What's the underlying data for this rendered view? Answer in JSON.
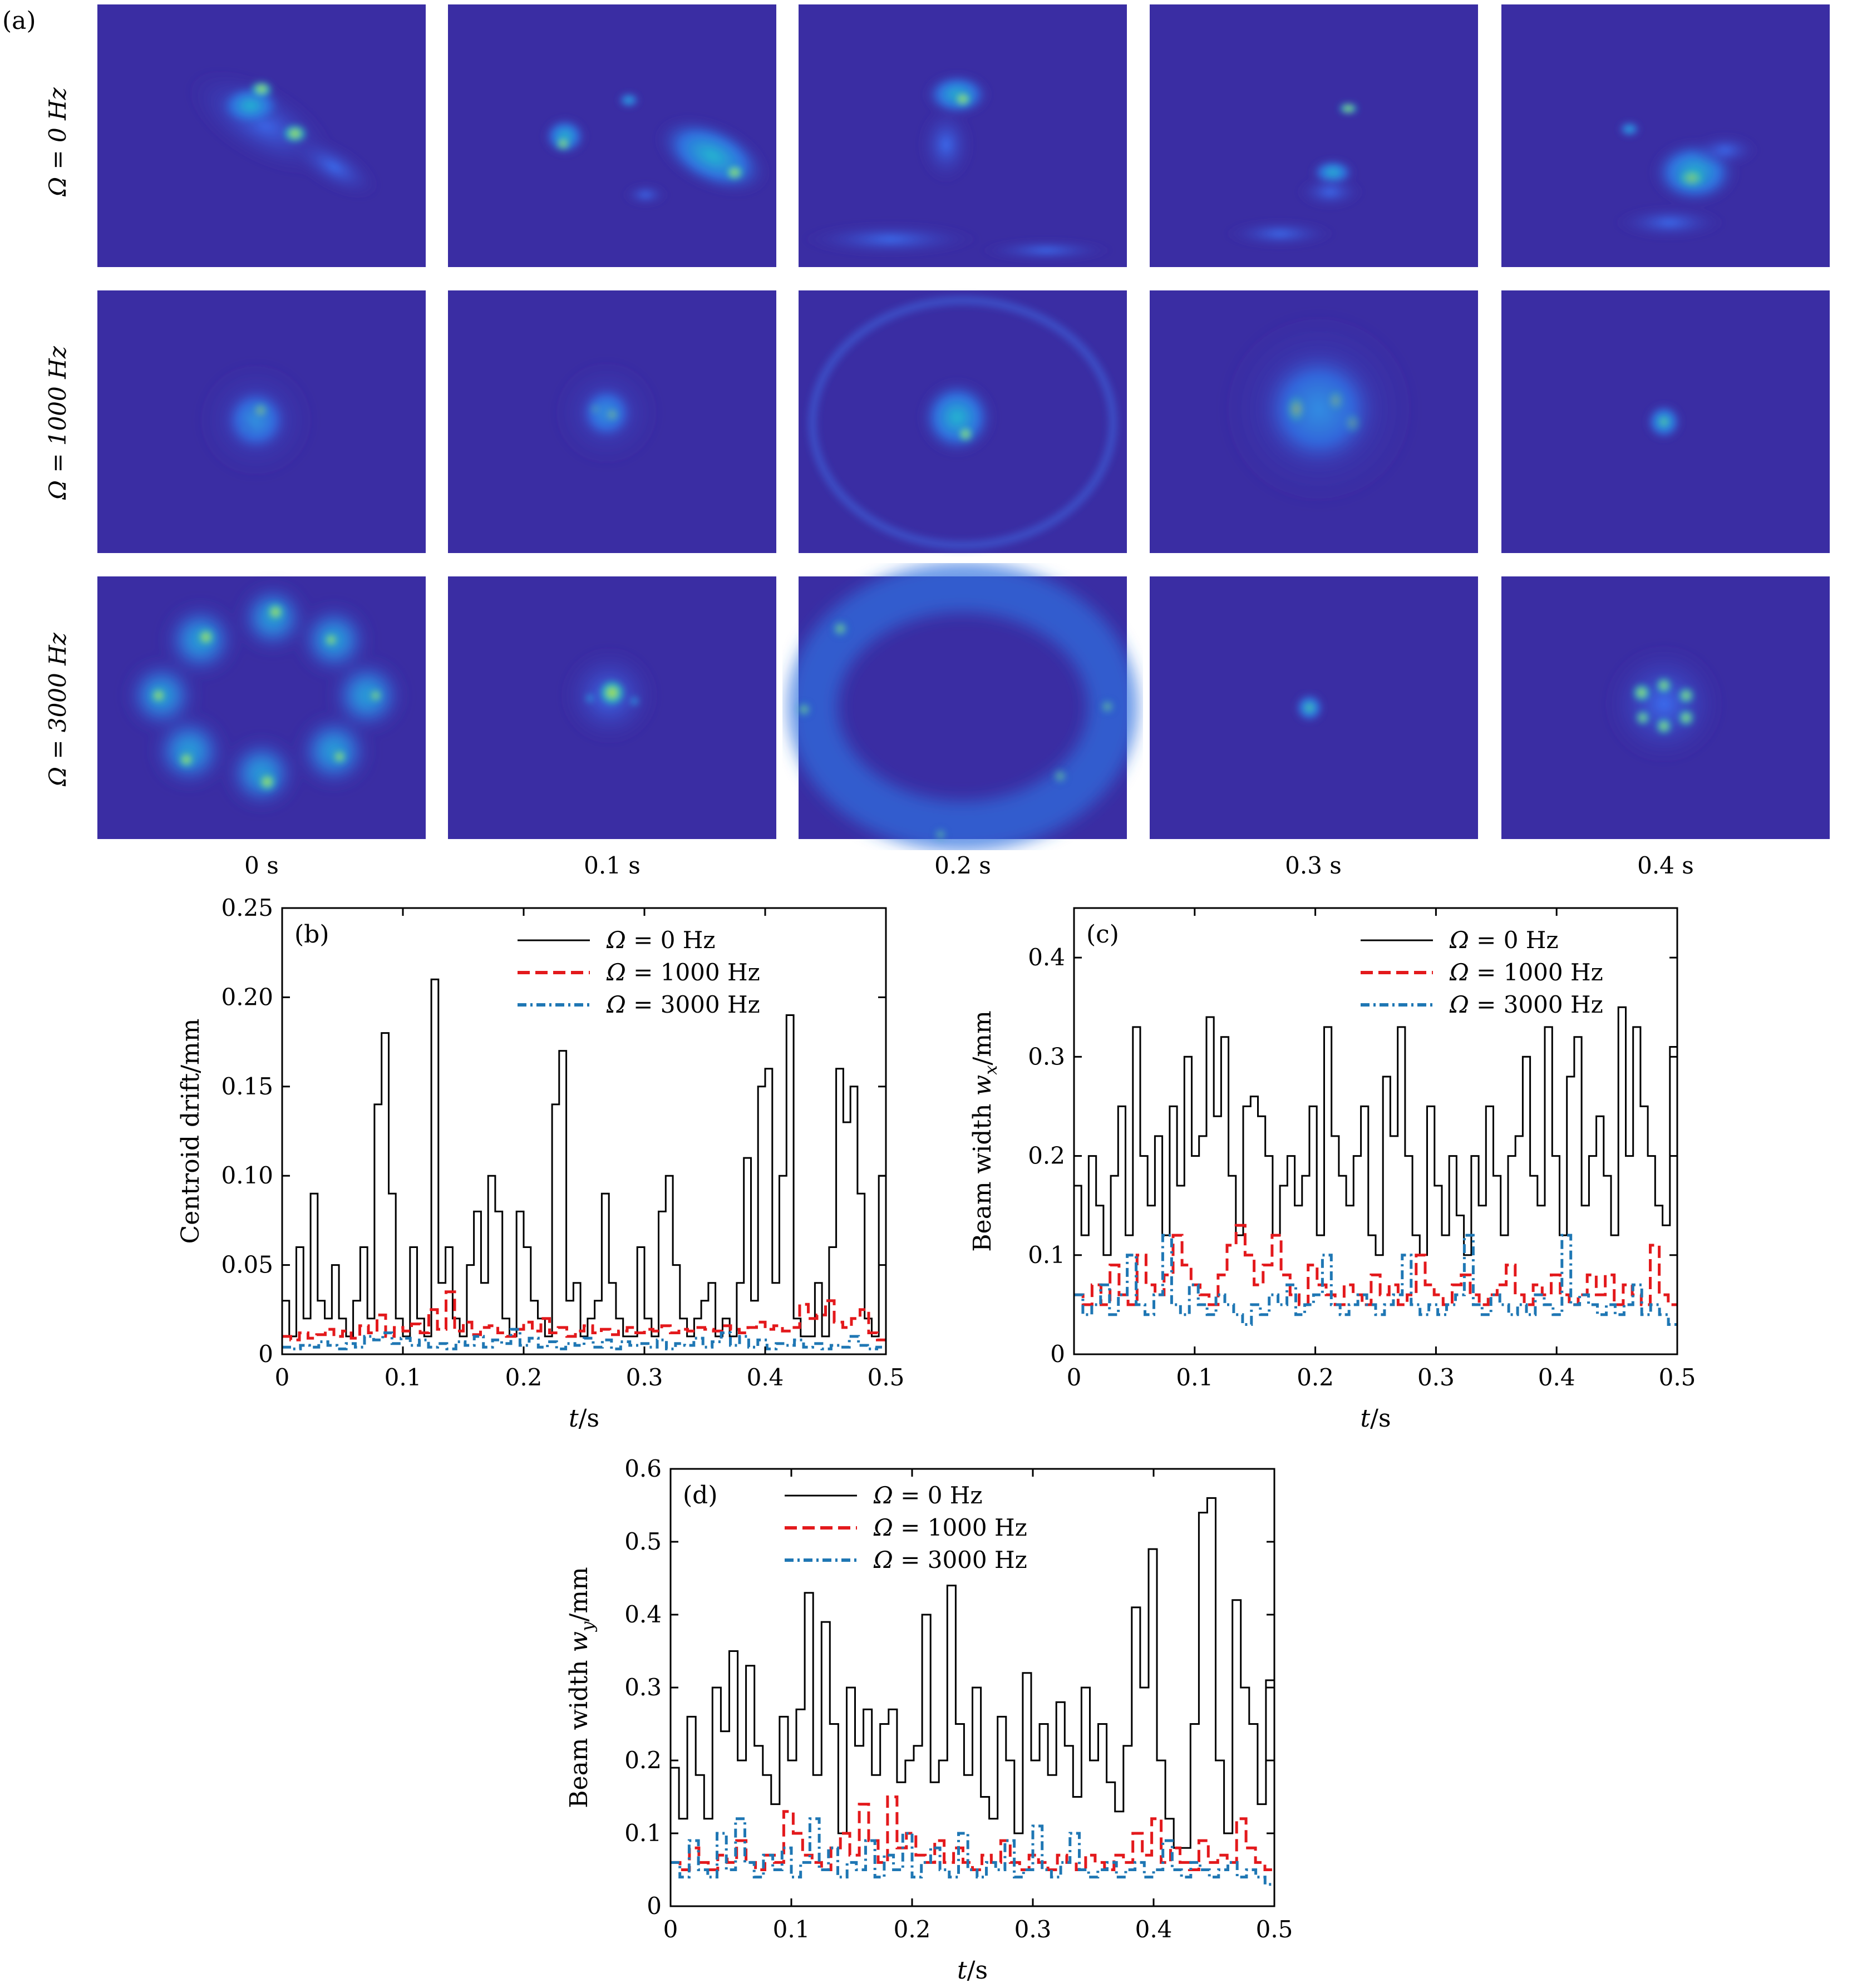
{
  "panel_a": {
    "label": "(a)",
    "row_labels": [
      "Ω = 0 Hz",
      "Ω = 1000 Hz",
      "Ω = 3000 Hz"
    ],
    "col_labels": [
      "0 s",
      "0.1 s",
      "0.2 s",
      "0.3 s",
      "0.4 s"
    ],
    "colors": {
      "background": "#3a2da3",
      "low": "#2f5fd6",
      "mid": "#19b2cf",
      "high": "#f2e81e"
    }
  },
  "chart_data": [
    {
      "panel": "(b)",
      "type": "line",
      "step": true,
      "ylabel": "Centroid drift/mm",
      "xlabel": "t/s",
      "xlim": [
        0,
        0.5
      ],
      "ylim": [
        0,
        0.25
      ],
      "xticks": [
        "0",
        "0.1",
        "0.2",
        "0.3",
        "0.4",
        "0.5"
      ],
      "yticks": [
        "0",
        "0.05",
        "0.10",
        "0.15",
        "0.20",
        "0.25"
      ],
      "legend": "top-center",
      "series": [
        {
          "name": "Ω = 0 Hz",
          "color": "#000000",
          "style": "solid",
          "values": [
            0.03,
            0.01,
            0.06,
            0.02,
            0.09,
            0.03,
            0.02,
            0.05,
            0.02,
            0.01,
            0.03,
            0.06,
            0.02,
            0.14,
            0.18,
            0.09,
            0.02,
            0.01,
            0.06,
            0.02,
            0.01,
            0.21,
            0.04,
            0.06,
            0.02,
            0.01,
            0.05,
            0.08,
            0.04,
            0.1,
            0.08,
            0.02,
            0.01,
            0.08,
            0.06,
            0.03,
            0.02,
            0.01,
            0.14,
            0.17,
            0.03,
            0.04,
            0.01,
            0.02,
            0.03,
            0.09,
            0.04,
            0.02,
            0.01,
            0.01,
            0.06,
            0.02,
            0.01,
            0.08,
            0.1,
            0.05,
            0.02,
            0.01,
            0.02,
            0.03,
            0.04,
            0.01,
            0.02,
            0.01,
            0.04,
            0.11,
            0.03,
            0.15,
            0.16,
            0.04,
            0.1,
            0.19,
            0.02,
            0.01,
            0.01,
            0.04,
            0.01,
            0.06,
            0.16,
            0.13,
            0.15,
            0.09,
            0.02,
            0.01,
            0.1
          ]
        },
        {
          "name": "Ω = 1000 Hz",
          "color": "#e3191c",
          "style": "dashed",
          "values": [
            0.01,
            0.008,
            0.012,
            0.009,
            0.011,
            0.014,
            0.01,
            0.013,
            0.009,
            0.016,
            0.012,
            0.022,
            0.01,
            0.015,
            0.013,
            0.017,
            0.012,
            0.025,
            0.014,
            0.035,
            0.013,
            0.018,
            0.011,
            0.015,
            0.016,
            0.012,
            0.01,
            0.014,
            0.018,
            0.013,
            0.02,
            0.012,
            0.015,
            0.01,
            0.013,
            0.016,
            0.012,
            0.014,
            0.011,
            0.013,
            0.015,
            0.012,
            0.014,
            0.013,
            0.016,
            0.012,
            0.014,
            0.013,
            0.015,
            0.014,
            0.013,
            0.016,
            0.014,
            0.012,
            0.015,
            0.018,
            0.014,
            0.016,
            0.013,
            0.015,
            0.028,
            0.02,
            0.022,
            0.03,
            0.018,
            0.015,
            0.02,
            0.025,
            0.012,
            0.008
          ]
        },
        {
          "name": "Ω = 3000 Hz",
          "color": "#1f77b4",
          "style": "dashdot",
          "values": [
            0.004,
            0.003,
            0.005,
            0.004,
            0.007,
            0.005,
            0.003,
            0.006,
            0.004,
            0.01,
            0.008,
            0.012,
            0.006,
            0.009,
            0.005,
            0.008,
            0.004,
            0.006,
            0.003,
            0.007,
            0.005,
            0.01,
            0.004,
            0.008,
            0.006,
            0.014,
            0.005,
            0.009,
            0.004,
            0.007,
            0.003,
            0.006,
            0.005,
            0.009,
            0.004,
            0.008,
            0.003,
            0.007,
            0.005,
            0.006,
            0.004,
            0.008,
            0.003,
            0.006,
            0.005,
            0.009,
            0.004,
            0.007,
            0.012,
            0.005,
            0.01,
            0.004,
            0.008,
            0.003,
            0.006,
            0.005,
            0.008,
            0.004,
            0.006,
            0.003,
            0.005,
            0.004,
            0.01,
            0.005,
            0.003,
            0.004
          ]
        }
      ]
    },
    {
      "panel": "(c)",
      "type": "line",
      "step": true,
      "ylabel": "Beam width w_x/mm",
      "xlabel": "t/s",
      "xlim": [
        0,
        0.5
      ],
      "ylim": [
        0,
        0.45
      ],
      "xticks": [
        "0",
        "0.1",
        "0.2",
        "0.3",
        "0.4",
        "0.5"
      ],
      "yticks": [
        "0",
        "0.1",
        "0.2",
        "0.3",
        "0.4"
      ],
      "legend": "top-center",
      "series": [
        {
          "name": "Ω = 0 Hz",
          "color": "#000000",
          "style": "solid",
          "values": [
            0.17,
            0.12,
            0.2,
            0.15,
            0.1,
            0.18,
            0.25,
            0.12,
            0.33,
            0.2,
            0.15,
            0.22,
            0.12,
            0.25,
            0.17,
            0.3,
            0.2,
            0.22,
            0.34,
            0.24,
            0.32,
            0.18,
            0.12,
            0.25,
            0.26,
            0.24,
            0.2,
            0.12,
            0.17,
            0.2,
            0.15,
            0.18,
            0.25,
            0.12,
            0.33,
            0.22,
            0.18,
            0.15,
            0.2,
            0.25,
            0.12,
            0.1,
            0.28,
            0.22,
            0.33,
            0.2,
            0.12,
            0.1,
            0.25,
            0.17,
            0.12,
            0.2,
            0.14,
            0.1,
            0.2,
            0.15,
            0.25,
            0.18,
            0.12,
            0.2,
            0.22,
            0.3,
            0.18,
            0.15,
            0.33,
            0.2,
            0.12,
            0.28,
            0.32,
            0.15,
            0.2,
            0.24,
            0.18,
            0.12,
            0.35,
            0.2,
            0.33,
            0.25,
            0.2,
            0.15,
            0.13,
            0.31
          ]
        },
        {
          "name": "Ω = 1000 Hz",
          "color": "#e3191c",
          "style": "dashed",
          "values": [
            0.06,
            0.05,
            0.07,
            0.05,
            0.09,
            0.06,
            0.05,
            0.1,
            0.07,
            0.06,
            0.08,
            0.12,
            0.09,
            0.07,
            0.06,
            0.05,
            0.08,
            0.11,
            0.13,
            0.1,
            0.07,
            0.09,
            0.12,
            0.08,
            0.06,
            0.05,
            0.09,
            0.07,
            0.06,
            0.05,
            0.07,
            0.06,
            0.05,
            0.08,
            0.06,
            0.07,
            0.05,
            0.06,
            0.1,
            0.07,
            0.06,
            0.05,
            0.07,
            0.08,
            0.06,
            0.05,
            0.06,
            0.07,
            0.09,
            0.06,
            0.05,
            0.07,
            0.06,
            0.08,
            0.06,
            0.05,
            0.06,
            0.08,
            0.06,
            0.08,
            0.05,
            0.07,
            0.06,
            0.05,
            0.11,
            0.06,
            0.05
          ]
        },
        {
          "name": "Ω = 3000 Hz",
          "color": "#1f77b4",
          "style": "dashdot",
          "values": [
            0.06,
            0.04,
            0.05,
            0.07,
            0.04,
            0.06,
            0.1,
            0.05,
            0.04,
            0.06,
            0.12,
            0.05,
            0.04,
            0.07,
            0.05,
            0.04,
            0.06,
            0.05,
            0.04,
            0.03,
            0.05,
            0.04,
            0.06,
            0.05,
            0.07,
            0.04,
            0.05,
            0.06,
            0.1,
            0.05,
            0.04,
            0.05,
            0.06,
            0.05,
            0.04,
            0.05,
            0.06,
            0.1,
            0.05,
            0.04,
            0.05,
            0.04,
            0.05,
            0.06,
            0.12,
            0.05,
            0.04,
            0.06,
            0.05,
            0.04,
            0.05,
            0.04,
            0.06,
            0.05,
            0.04,
            0.12,
            0.05,
            0.06,
            0.05,
            0.04,
            0.05,
            0.04,
            0.05,
            0.07,
            0.04,
            0.05,
            0.04,
            0.03
          ]
        }
      ]
    },
    {
      "panel": "(d)",
      "type": "line",
      "step": true,
      "ylabel": "Beam width w_y/mm",
      "xlabel": "t/s",
      "xlim": [
        0,
        0.5
      ],
      "ylim": [
        0,
        0.6
      ],
      "xticks": [
        "0",
        "0.1",
        "0.2",
        "0.3",
        "0.4",
        "0.5"
      ],
      "yticks": [
        "0",
        "0.1",
        "0.2",
        "0.3",
        "0.4",
        "0.5",
        "0.6"
      ],
      "legend": "top-center",
      "series": [
        {
          "name": "Ω = 0 Hz",
          "color": "#000000",
          "style": "solid",
          "values": [
            0.19,
            0.12,
            0.26,
            0.18,
            0.12,
            0.3,
            0.24,
            0.35,
            0.2,
            0.33,
            0.22,
            0.18,
            0.14,
            0.26,
            0.2,
            0.27,
            0.43,
            0.18,
            0.39,
            0.25,
            0.1,
            0.3,
            0.22,
            0.27,
            0.18,
            0.25,
            0.27,
            0.17,
            0.2,
            0.22,
            0.4,
            0.17,
            0.2,
            0.44,
            0.25,
            0.18,
            0.3,
            0.15,
            0.12,
            0.26,
            0.2,
            0.1,
            0.32,
            0.2,
            0.25,
            0.18,
            0.28,
            0.22,
            0.15,
            0.3,
            0.2,
            0.25,
            0.17,
            0.13,
            0.22,
            0.41,
            0.3,
            0.49,
            0.2,
            0.12,
            0.08,
            0.08,
            0.25,
            0.54,
            0.56,
            0.2,
            0.1,
            0.42,
            0.3,
            0.25,
            0.14,
            0.31
          ]
        },
        {
          "name": "Ω = 1000 Hz",
          "color": "#e3191c",
          "style": "dashed",
          "values": [
            0.06,
            0.05,
            0.08,
            0.06,
            0.05,
            0.07,
            0.06,
            0.09,
            0.06,
            0.05,
            0.07,
            0.06,
            0.13,
            0.1,
            0.07,
            0.06,
            0.05,
            0.08,
            0.1,
            0.07,
            0.14,
            0.09,
            0.06,
            0.15,
            0.08,
            0.1,
            0.07,
            0.06,
            0.09,
            0.06,
            0.08,
            0.06,
            0.05,
            0.07,
            0.06,
            0.09,
            0.06,
            0.05,
            0.07,
            0.06,
            0.05,
            0.07,
            0.06,
            0.05,
            0.07,
            0.06,
            0.05,
            0.07,
            0.06,
            0.1,
            0.07,
            0.12,
            0.06,
            0.08,
            0.06,
            0.05,
            0.09,
            0.06,
            0.07,
            0.06,
            0.12,
            0.08,
            0.06,
            0.05
          ]
        },
        {
          "name": "Ω = 3000 Hz",
          "color": "#1f77b4",
          "style": "dashdot",
          "values": [
            0.06,
            0.04,
            0.09,
            0.05,
            0.04,
            0.1,
            0.05,
            0.12,
            0.06,
            0.04,
            0.07,
            0.05,
            0.08,
            0.04,
            0.06,
            0.12,
            0.05,
            0.08,
            0.04,
            0.06,
            0.05,
            0.09,
            0.04,
            0.07,
            0.05,
            0.1,
            0.04,
            0.06,
            0.08,
            0.05,
            0.04,
            0.1,
            0.05,
            0.04,
            0.06,
            0.05,
            0.09,
            0.04,
            0.05,
            0.11,
            0.05,
            0.04,
            0.06,
            0.1,
            0.05,
            0.04,
            0.05,
            0.06,
            0.04,
            0.05,
            0.06,
            0.04,
            0.05,
            0.09,
            0.05,
            0.04,
            0.06,
            0.05,
            0.04,
            0.05,
            0.06,
            0.04,
            0.05,
            0.04,
            0.03
          ]
        }
      ]
    }
  ]
}
